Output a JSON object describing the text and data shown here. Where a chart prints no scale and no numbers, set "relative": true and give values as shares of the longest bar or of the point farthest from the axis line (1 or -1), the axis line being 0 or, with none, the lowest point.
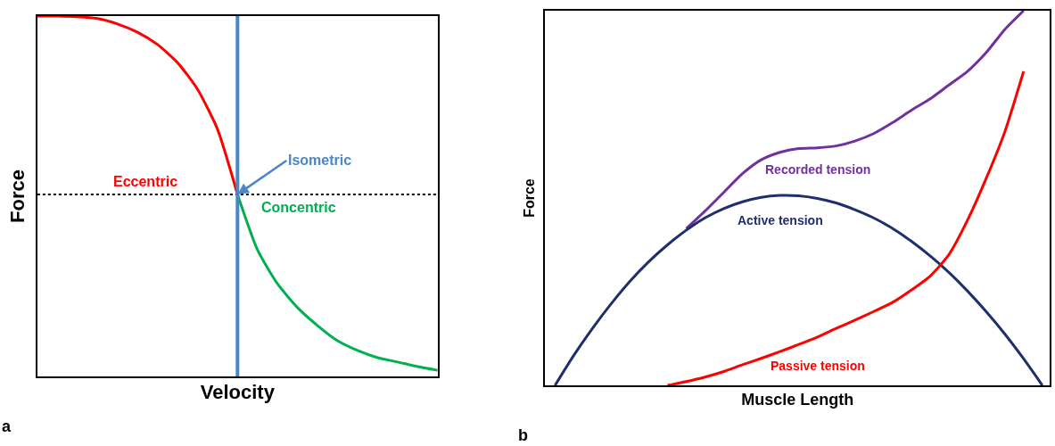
{
  "chart_data": [
    {
      "type": "line",
      "relative": true,
      "xlabel": "Velocity",
      "ylabel": "Force",
      "legend": false,
      "marker": "none",
      "categories": [
        null,
        null,
        null,
        null,
        null,
        null,
        null,
        null,
        null,
        null,
        null,
        null,
        null,
        null,
        null,
        null,
        null,
        null,
        null,
        null,
        null
      ],
      "series": [
        {
          "name": "Eccentric",
          "color": "#ff0000",
          "values": [
            1.0,
            1.0,
            0.998,
            0.993,
            0.978,
            0.955,
            0.921,
            0.871,
            0.797,
            0.686,
            0.505,
            null,
            null,
            null,
            null,
            null,
            null,
            null,
            null,
            null,
            null
          ]
        },
        {
          "name": "Concentric",
          "color": "#00b050",
          "values": [
            null,
            null,
            null,
            null,
            null,
            null,
            null,
            null,
            null,
            null,
            0.505,
            0.351,
            0.257,
            0.191,
            0.141,
            0.099,
            0.072,
            0.052,
            0.04,
            0.027,
            0.017
          ]
        }
      ],
      "ref_lines": [
        {
          "axis": "y",
          "value": 0.505,
          "color": "#000000",
          "line_style": "dotted"
        }
      ],
      "annotations": [
        "a",
        "Isometric"
      ]
    },
    {
      "type": "line",
      "relative": true,
      "xlabel": "Muscle Length",
      "ylabel": "Force",
      "legend": false,
      "marker": "none",
      "categories": [
        null,
        null,
        null,
        null,
        null,
        null,
        null,
        null,
        null,
        null,
        null,
        null,
        null,
        null,
        null,
        null,
        null,
        null,
        null,
        null,
        null,
        null,
        null,
        null,
        null,
        null,
        null
      ],
      "series": [
        {
          "name": "Recorded tension",
          "color": "#7030a0",
          "values": [
            null,
            null,
            null,
            null,
            null,
            null,
            null,
            0.418,
            0.465,
            0.515,
            0.565,
            0.602,
            0.622,
            0.632,
            0.634,
            0.639,
            0.652,
            0.672,
            0.701,
            0.734,
            0.764,
            0.801,
            0.838,
            0.888,
            0.95,
            1.0,
            null
          ]
        },
        {
          "name": "Active tension",
          "color": "#1f2f6b",
          "values": [
            0,
            0.08,
            0.152,
            0.218,
            0.278,
            0.33,
            0.375,
            0.414,
            0.447,
            0.472,
            0.49,
            0.502,
            0.507,
            0.506,
            0.499,
            0.487,
            0.469,
            0.447,
            0.419,
            0.385,
            0.346,
            0.302,
            0.252,
            0.197,
            0.137,
            0.071,
            0
          ]
        },
        {
          "name": "Passive tension",
          "color": "#ff0000",
          "values": [
            null,
            null,
            null,
            null,
            null,
            null,
            0,
            0.01,
            0.022,
            0.037,
            0.055,
            0.072,
            0.09,
            0.109,
            0.129,
            0.152,
            0.174,
            0.197,
            0.221,
            0.254,
            0.291,
            0.348,
            0.44,
            0.552,
            0.677,
            0.838,
            null
          ]
        }
      ],
      "annotations": [
        "b"
      ]
    }
  ]
}
